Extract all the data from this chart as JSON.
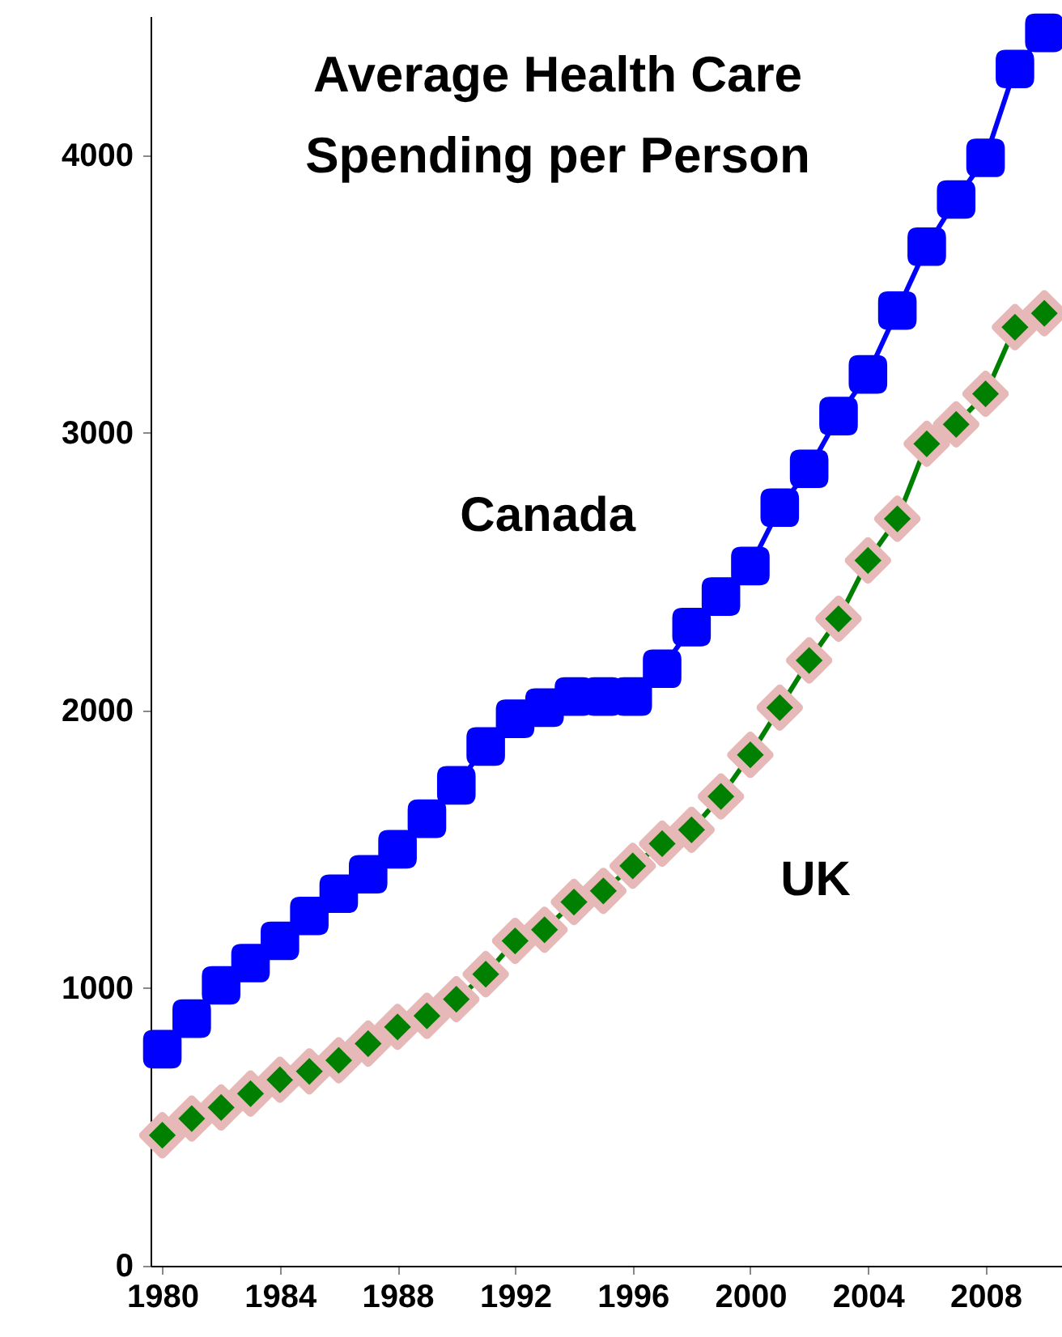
{
  "chart_data": {
    "type": "line",
    "title": "Average Health Care\nSpending per Person",
    "x": [
      1980,
      1981,
      1982,
      1983,
      1984,
      1985,
      1986,
      1987,
      1988,
      1989,
      1990,
      1991,
      1992,
      1993,
      1994,
      1995,
      1996,
      1997,
      1998,
      1999,
      2000,
      2001,
      2002,
      2003,
      2004,
      2005,
      2006,
      2007,
      2008,
      2009,
      2010
    ],
    "series": [
      {
        "name": "Canada",
        "color": "#0000ff",
        "marker": "square",
        "values": [
          780,
          890,
          1010,
          1090,
          1170,
          1260,
          1340,
          1410,
          1500,
          1610,
          1730,
          1870,
          1970,
          2010,
          2050,
          2050,
          2050,
          2150,
          2300,
          2410,
          2520,
          2730,
          2870,
          3060,
          3210,
          3440,
          3670,
          3840,
          3990,
          4310,
          4440
        ]
      },
      {
        "name": "UK",
        "color": "#008000",
        "marker": "diamond",
        "values": [
          470,
          530,
          570,
          620,
          670,
          700,
          740,
          800,
          860,
          900,
          960,
          1050,
          1170,
          1210,
          1310,
          1350,
          1440,
          1520,
          1570,
          1690,
          1840,
          2010,
          2180,
          2330,
          2540,
          2690,
          2960,
          3030,
          3140,
          3380,
          3430
        ]
      }
    ],
    "xlim": [
      1979.6,
      2010.6
    ],
    "xticks": [
      1980,
      1984,
      1988,
      1992,
      1996,
      2000,
      2004,
      2008
    ],
    "ylim": [
      0,
      4500
    ],
    "yticks": [
      0,
      1000,
      2000,
      3000,
      4000
    ],
    "grid": false
  }
}
